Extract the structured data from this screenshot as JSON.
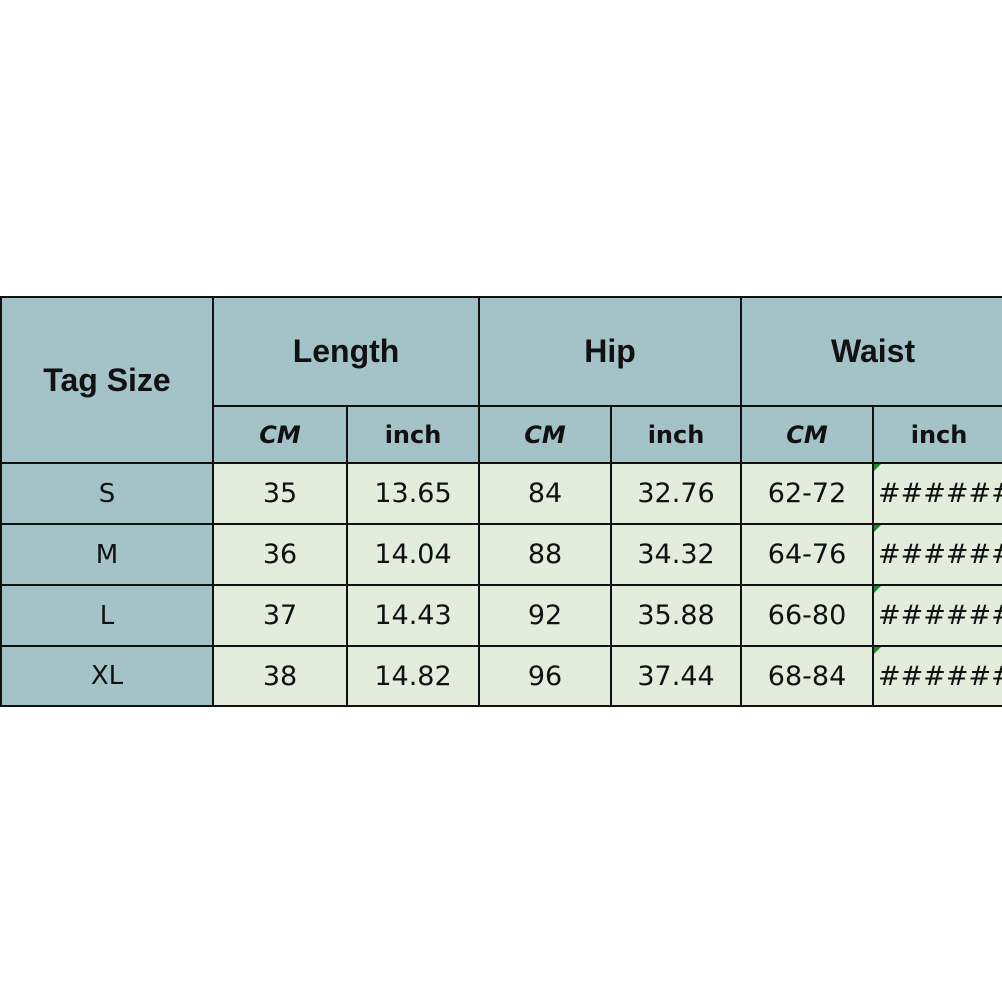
{
  "header": {
    "tag_size": "Tag Size",
    "groups": [
      "Length",
      "Hip",
      "Waist"
    ],
    "units": [
      "CM",
      "inch",
      "CM",
      "inch",
      "CM",
      "inch"
    ]
  },
  "rows": [
    {
      "size": "S",
      "values": [
        "35",
        "13.65",
        "84",
        "32.76",
        "62-72",
        "######"
      ]
    },
    {
      "size": "M",
      "values": [
        "36",
        "14.04",
        "88",
        "34.32",
        "64-76",
        "######"
      ]
    },
    {
      "size": "L",
      "values": [
        "37",
        "14.43",
        "92",
        "35.88",
        "66-80",
        "######"
      ]
    },
    {
      "size": "XL",
      "values": [
        "38",
        "14.82",
        "96",
        "37.44",
        "68-84",
        "######"
      ]
    }
  ],
  "colors": {
    "header_bg": "#a3c3c9",
    "cell_bg": "#e2eedb",
    "error_marker": "#1a8a2a"
  }
}
